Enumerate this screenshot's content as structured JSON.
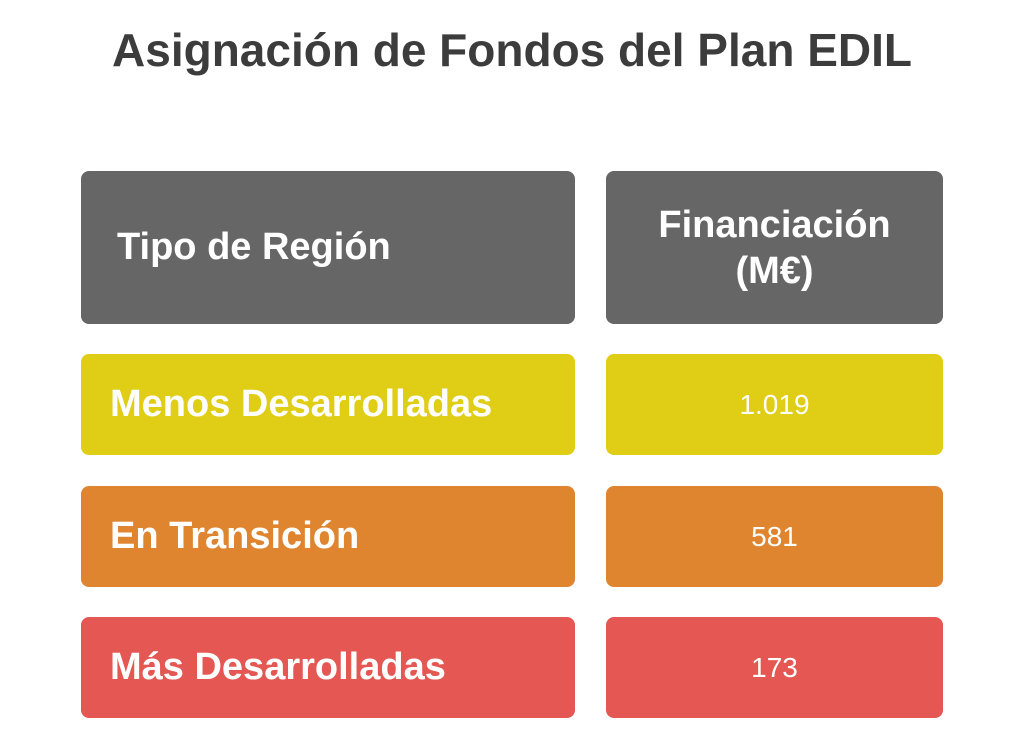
{
  "title": "Asignación de Fondos del Plan EDIL",
  "table": {
    "headers": {
      "region": "Tipo de Región",
      "funding_line1": "Financiación",
      "funding_line2": "(M€)"
    },
    "rows": [
      {
        "label": "Menos Desarrolladas",
        "value": "1.019",
        "color": "#e0cd16"
      },
      {
        "label": "En Transición",
        "value": "581",
        "color": "#df8530"
      },
      {
        "label": "Más Desarrolladas",
        "value": "173",
        "color": "#e45752"
      }
    ],
    "header_color": "#666666"
  },
  "chart_data": {
    "type": "table",
    "title": "Asignación de Fondos del Plan EDIL",
    "columns": [
      "Tipo de Región",
      "Financiación (M€)"
    ],
    "categories": [
      "Menos Desarrolladas",
      "En Transición",
      "Más Desarrolladas"
    ],
    "values": [
      1019,
      581,
      173
    ]
  }
}
